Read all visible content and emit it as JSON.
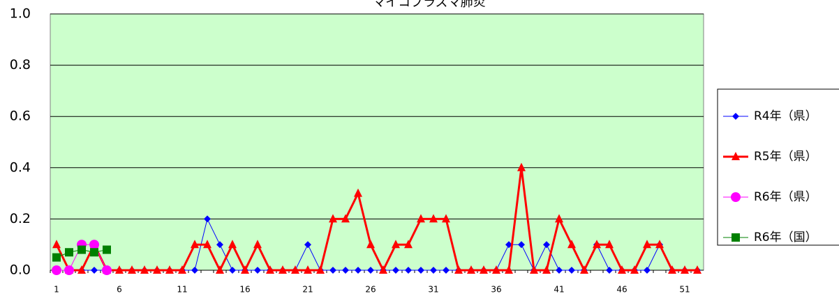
{
  "chart_data": {
    "type": "line",
    "title": "マイコプラズマ肺炎",
    "categories": [
      1,
      null,
      null,
      null,
      null,
      6,
      null,
      null,
      null,
      null,
      11,
      null,
      null,
      null,
      null,
      16,
      null,
      null,
      null,
      null,
      21,
      null,
      null,
      null,
      null,
      26,
      null,
      null,
      null,
      null,
      31,
      null,
      null,
      null,
      null,
      36,
      null,
      null,
      null,
      null,
      41,
      null,
      null,
      null,
      null,
      46,
      null,
      null,
      null,
      null,
      51,
      null
    ],
    "series": [
      {
        "name": "R4年（県）",
        "color": "#0000ff",
        "marker": "diamond",
        "values": [
          0,
          0,
          0,
          0,
          0,
          0,
          0,
          0,
          0,
          0,
          0,
          0,
          0.2,
          0.1,
          0,
          0,
          0,
          0,
          0,
          0,
          0.1,
          0,
          0,
          0,
          0,
          0,
          0,
          0,
          0,
          0,
          0,
          0,
          0,
          0,
          0,
          0,
          0.1,
          0.1,
          0,
          0.1,
          0,
          0,
          0,
          0.1,
          0,
          0,
          0,
          0,
          0.1,
          0,
          0,
          0
        ]
      },
      {
        "name": "R5年（県）",
        "color": "#ff0000",
        "marker": "triangle",
        "values": [
          0.1,
          0,
          0,
          0.1,
          0,
          0,
          0,
          0,
          0,
          0,
          0,
          0.1,
          0.1,
          0,
          0.1,
          0,
          0.1,
          0,
          0,
          0,
          0,
          0,
          0.2,
          0.2,
          0.3,
          0.1,
          0,
          0.1,
          0.1,
          0.2,
          0.2,
          0.2,
          0,
          0,
          0,
          0,
          0,
          0.4,
          0,
          0,
          0.2,
          0.1,
          0,
          0.1,
          0.1,
          0,
          0,
          0.1,
          0.1,
          0,
          0,
          0
        ]
      },
      {
        "name": "R6年（県）",
        "color": "#ff00ff",
        "marker": "circle",
        "values": [
          0,
          0,
          0.1,
          0.1,
          0,
          null,
          null,
          null,
          null,
          null,
          null,
          null,
          null,
          null,
          null,
          null,
          null,
          null,
          null,
          null,
          null,
          null,
          null,
          null,
          null,
          null,
          null,
          null,
          null,
          null,
          null,
          null,
          null,
          null,
          null,
          null,
          null,
          null,
          null,
          null,
          null,
          null,
          null,
          null,
          null,
          null,
          null,
          null,
          null,
          null,
          null,
          null
        ]
      },
      {
        "name": "R6年（国）",
        "color": "#008000",
        "marker": "square",
        "values": [
          0.05,
          0.07,
          0.08,
          0.07,
          0.08,
          null,
          null,
          null,
          null,
          null,
          null,
          null,
          null,
          null,
          null,
          null,
          null,
          null,
          null,
          null,
          null,
          null,
          null,
          null,
          null,
          null,
          null,
          null,
          null,
          null,
          null,
          null,
          null,
          null,
          null,
          null,
          null,
          null,
          null,
          null,
          null,
          null,
          null,
          null,
          null,
          null,
          null,
          null,
          null,
          null,
          null,
          null
        ]
      }
    ],
    "ylim": [
      0,
      1
    ],
    "yticks": [
      {
        "value": 0,
        "label": "0.0"
      },
      0.2,
      0.4,
      0.6,
      0.8,
      {
        "value": 1,
        "label": "1.0"
      }
    ],
    "grid": true,
    "legend": "right"
  }
}
